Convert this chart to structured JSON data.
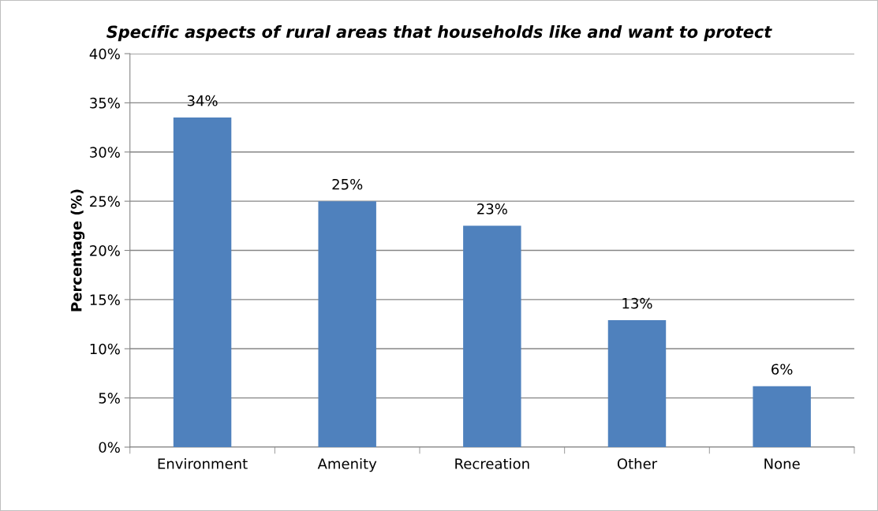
{
  "chart_data": {
    "type": "bar",
    "title": "Specific aspects of rural areas that households like and want to protect",
    "ylabel": "Percentage (%)",
    "categories": [
      "Environment",
      "Amenity",
      "Recreation",
      "Other",
      "None"
    ],
    "values": [
      33.5,
      25,
      22.5,
      12.9,
      6.2
    ],
    "value_labels": [
      "34%",
      "25%",
      "23%",
      "13%",
      "6%"
    ],
    "color": "#4f81bd",
    "ylim": [
      0,
      40
    ],
    "yticks": [
      {
        "value": 0,
        "label": "0%"
      },
      {
        "value": 5,
        "label": "5%"
      },
      {
        "value": 10,
        "label": "10%"
      },
      {
        "value": 15,
        "label": "15%"
      },
      {
        "value": 20,
        "label": "20%"
      },
      {
        "value": 25,
        "label": "25%"
      },
      {
        "value": 30,
        "label": "30%"
      },
      {
        "value": 35,
        "label": "35%"
      },
      {
        "value": 40,
        "label": "40%"
      }
    ],
    "grid": "y",
    "legend": false
  }
}
